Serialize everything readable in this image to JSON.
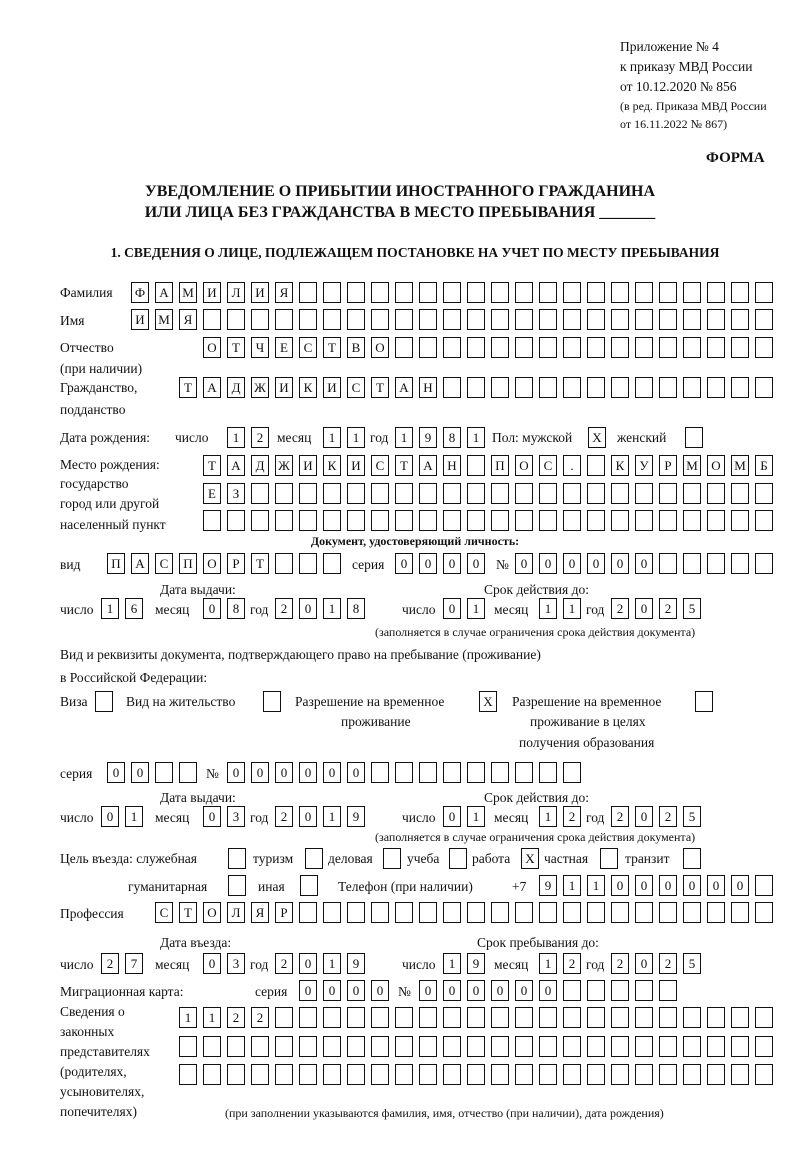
{
  "header": {
    "appendix": "Приложение № 4",
    "order": "к приказу МВД России",
    "order_date": "от 10.12.2020 № 856",
    "edition1": "(в ред. Приказа МВД России",
    "edition2": "от 16.11.2022 № 867)",
    "form": "ФОРМА",
    "title1": "УВЕДОМЛЕНИЕ О ПРИБЫТИИ ИНОСТРАННОГО ГРАЖДАНИНА",
    "title2": "ИЛИ ЛИЦА БЕЗ ГРАЖДАНСТВА В МЕСТО ПРЕБЫВАНИЯ _______",
    "section1": "1. СВЕДЕНИЯ О ЛИЦЕ, ПОДЛЕЖАЩЕМ ПОСТАНОВКЕ НА УЧЕТ ПО МЕСТУ ПРЕБЫВАНИЯ"
  },
  "labels": {
    "surname": "Фамилия",
    "name": "Имя",
    "patronymic": "Отчество",
    "patronymic2": "(при наличии)",
    "citizenship": "Гражданство,",
    "citizenship2": "подданство",
    "birth_date": "Дата рождения:",
    "day": "число",
    "month": "месяц",
    "year": "год",
    "sex": "Пол: мужской",
    "female": "женский",
    "birth_place": "Место рождения:",
    "bp2": "государство",
    "bp3": "город или другой",
    "bp4": "населенный пункт",
    "id_doc": "Документ, удостоверяющий личность:",
    "kind": "вид",
    "series": "серия",
    "number": "№",
    "issue_date": "Дата выдачи:",
    "valid_until": "Срок действия до:",
    "valid_note": "(заполняется в случае ограничения срока действия документа)",
    "right_doc1": "Вид и реквизиты документа, подтверждающего право на пребывание (проживание)",
    "right_doc2": "в Российской Федерации:",
    "visa": "Виза",
    "residence": "Вид на жительство",
    "temp1": "Разрешение на временное",
    "temp2": "проживание",
    "edu1": "Разрешение на временное",
    "edu2": "проживание в целях",
    "edu3": "получения образования",
    "purpose": "Цель въезда: служебная",
    "tourism": "туризм",
    "business": "деловая",
    "study": "учеба",
    "work": "работа",
    "private": "частная",
    "transit": "транзит",
    "humanitarian": "гуманитарная",
    "other": "иная",
    "phone": "Телефон (при наличии)",
    "phone_prefix": "+7",
    "profession": "Профессия",
    "entry_date": "Дата въезда:",
    "stay_until": "Срок пребывания до:",
    "migration_card": "Миграционная карта:",
    "rep1": "Сведения о",
    "rep2": "законных",
    "rep3": "представителях",
    "rep4": "(родителях,",
    "rep5": "усыновителях,",
    "rep6": "попечителях)",
    "rep_note": "(при заполнении указываются фамилия, имя, отчество (при наличии), дата рождения)"
  },
  "values": {
    "surname": "ФАМИЛИЯ",
    "name": "ИМЯ",
    "patronymic": "ОТЧЕСТВО",
    "citizenship": "ТАДЖИКИСТАН",
    "birth_day": "12",
    "birth_month": "11",
    "birth_year": "1981",
    "male": "X",
    "female": "",
    "birth_place1": "ТАДЖИКИСТАН ПОС. КУРМОМБ",
    "birth_place2": "ЕЗ",
    "birth_place3": "",
    "doc_kind": "ПАСПОРТ",
    "doc_series": "0000",
    "doc_number": "000000",
    "doc_issue_day": "16",
    "doc_issue_month": "08",
    "doc_issue_year": "2018",
    "doc_valid_day": "01",
    "doc_valid_month": "11",
    "doc_valid_year": "2025",
    "visa": "",
    "residence": "",
    "temp_residence": "X",
    "edu_residence": "",
    "permit_series": "00",
    "permit_number": "000000",
    "permit_issue_day": "01",
    "permit_issue_month": "03",
    "permit_issue_year": "2019",
    "permit_valid_day": "01",
    "permit_valid_month": "12",
    "permit_valid_year": "2025",
    "p_service": "",
    "p_tourism": "",
    "p_business": "",
    "p_study": "",
    "p_work": "X",
    "p_private": "",
    "p_transit": "",
    "p_humanitarian": "",
    "p_other": "",
    "phone": "911000000",
    "profession": "СТОЛЯР",
    "entry_day": "27",
    "entry_month": "03",
    "entry_year": "2019",
    "stay_day": "19",
    "stay_month": "12",
    "stay_year": "2025",
    "mc_series": "0000",
    "mc_number": "000000",
    "rep1": "1122",
    "rep2": "",
    "rep3": ""
  }
}
